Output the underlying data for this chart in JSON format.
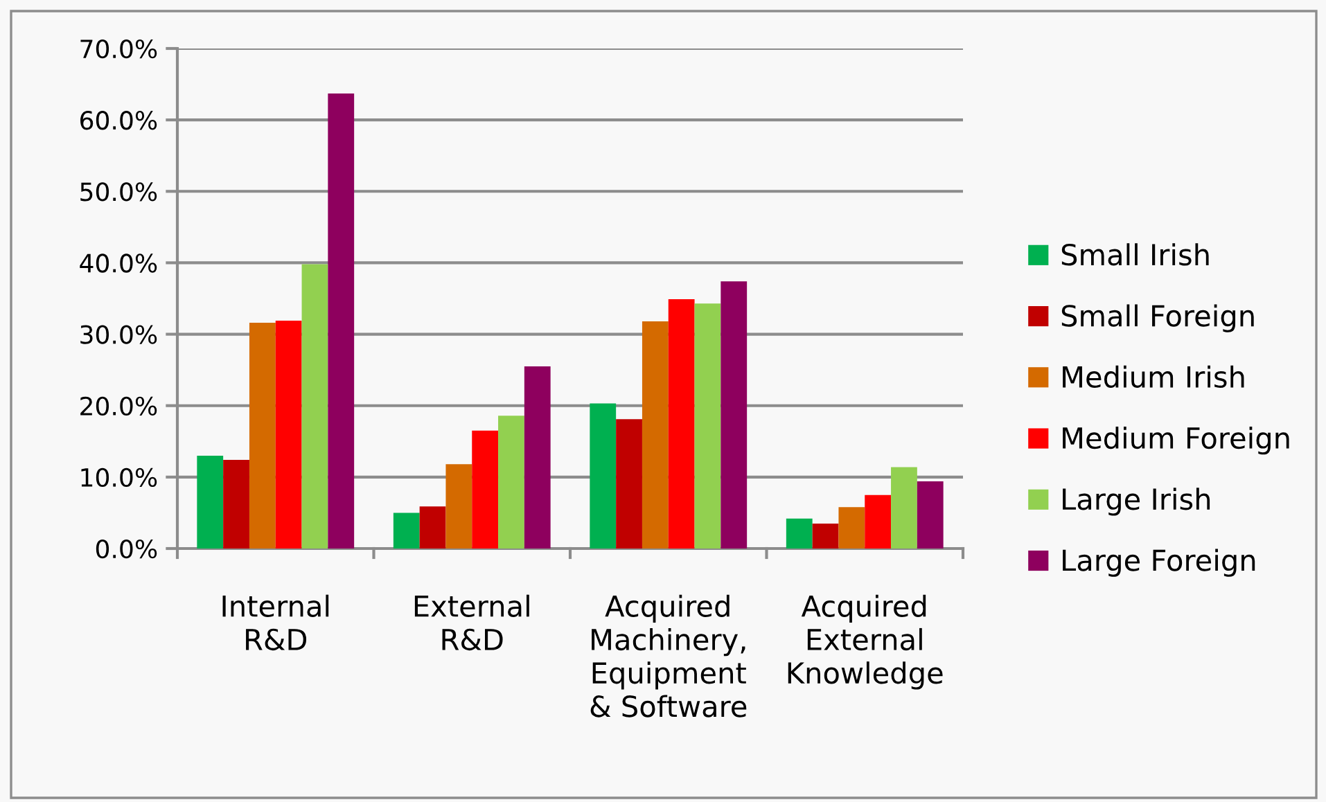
{
  "chart_data": {
    "type": "bar",
    "categories": [
      "Internal\nR&D",
      "External\nR&D",
      "Acquired\nMachinery,\nEquipment\n& Software",
      "Acquired\nExternal\nKnowledge"
    ],
    "series": [
      {
        "name": "Small Irish",
        "color": "#00b050",
        "values": [
          13.0,
          5.0,
          20.3,
          4.2
        ]
      },
      {
        "name": "Small Foreign",
        "color": "#c00000",
        "values": [
          12.4,
          5.9,
          18.1,
          3.5
        ]
      },
      {
        "name": "Medium Irish",
        "color": "#d46a00",
        "values": [
          31.6,
          11.8,
          31.8,
          5.8
        ]
      },
      {
        "name": "Medium Foreign",
        "color": "#ff0000",
        "values": [
          31.9,
          16.5,
          34.9,
          7.5
        ]
      },
      {
        "name": "Large Irish",
        "color": "#92d050",
        "values": [
          39.8,
          18.6,
          34.3,
          11.4
        ]
      },
      {
        "name": "Large Foreign",
        "color": "#8e005e",
        "values": [
          63.7,
          25.5,
          37.4,
          9.4
        ]
      }
    ],
    "ylim": [
      0,
      70
    ],
    "yticks": [
      {
        "value": 0,
        "label": "0.0%"
      },
      {
        "value": 10,
        "label": "10.0%"
      },
      {
        "value": 20,
        "label": "20.0%"
      },
      {
        "value": 30,
        "label": "30.0%"
      },
      {
        "value": 40,
        "label": "40.0%"
      },
      {
        "value": 50,
        "label": "50.0%"
      },
      {
        "value": 60,
        "label": "60.0%"
      },
      {
        "value": 70,
        "label": "70.0%"
      }
    ],
    "grid": "y",
    "legend": "right"
  }
}
